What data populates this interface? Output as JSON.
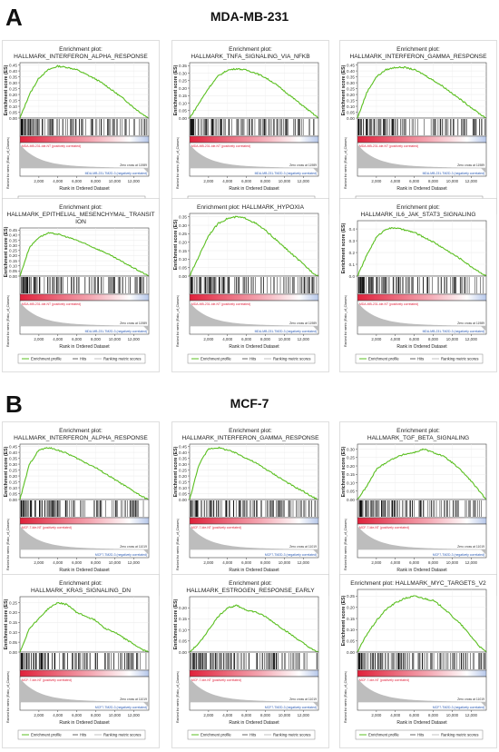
{
  "panels": [
    {
      "letter": "A",
      "title": "MDA-MB-231"
    },
    {
      "letter": "B",
      "title": "MCF-7"
    }
  ],
  "common": {
    "xlabel": "Rank in Ordered Dataset",
    "ylabel": "Enrichment score (ES)",
    "metric_label": "Ranked list metric (Ratio_of_Classes)",
    "legend": [
      "Enrichment profile",
      "Hits",
      "Ranking metric scores"
    ],
    "colors": {
      "es": "#5bbf21",
      "hits": "#000000",
      "metric": "#bdbdbd",
      "pos": "#e0203a",
      "neg": "#2a5ab5"
    }
  },
  "chart_data": [
    {
      "panel": "A",
      "type": "line",
      "title": "Enrichment plot:\nHALLMARK_INTERFERON_ALPHA_RESPONSE",
      "yticks": [
        0.0,
        0.05,
        0.1,
        0.15,
        0.2,
        0.25,
        0.3,
        0.35,
        0.4,
        0.45
      ],
      "ylim": [
        0,
        0.47
      ],
      "xticks": [
        2000,
        4000,
        6000,
        8000,
        10000,
        12000
      ],
      "xlim": [
        0,
        13600
      ],
      "x": [
        0,
        1000,
        2000,
        3000,
        4000,
        5000,
        6000,
        7000,
        8000,
        9000,
        10000,
        11000,
        12000,
        13000,
        13600
      ],
      "y": [
        0.0,
        0.2,
        0.34,
        0.41,
        0.44,
        0.43,
        0.41,
        0.37,
        0.33,
        0.28,
        0.22,
        0.16,
        0.09,
        0.03,
        0.0
      ],
      "pos_label": "MDA-MB-231-Ide-NT (positively correlated)",
      "neg_label": "MDA-MB-231-TM2D-3 (negatively correlated)",
      "zero_cross": "Zero cross at 11989"
    },
    {
      "panel": "A",
      "type": "line",
      "title": "Enrichment plot:\nHALLMARK_TNFA_SIGNALING_VIA_NFKB",
      "yticks": [
        0.0,
        0.05,
        0.1,
        0.15,
        0.2,
        0.25,
        0.3,
        0.35
      ],
      "ylim": [
        0,
        0.37
      ],
      "xticks": [
        2000,
        4000,
        6000,
        8000,
        10000,
        12000
      ],
      "xlim": [
        0,
        13600
      ],
      "x": [
        0,
        1000,
        2000,
        3000,
        4000,
        5000,
        6000,
        7000,
        8000,
        9000,
        10000,
        11000,
        12000,
        13000,
        13600
      ],
      "y": [
        0.0,
        0.1,
        0.2,
        0.28,
        0.32,
        0.33,
        0.32,
        0.3,
        0.27,
        0.23,
        0.18,
        0.13,
        0.08,
        0.03,
        0.0
      ],
      "pos_label": "MDA-MB-231-Ide-NT (positively correlated)",
      "neg_label": "MDA-MB-231-TM2D-3 (negatively correlated)",
      "zero_cross": "Zero cross at 11989"
    },
    {
      "panel": "A",
      "type": "line",
      "title": "Enrichment plot:\nHALLMARK_INTERFERON_GAMMA_RESPONSE",
      "yticks": [
        0.0,
        0.05,
        0.1,
        0.15,
        0.2,
        0.25,
        0.3,
        0.35,
        0.4,
        0.45
      ],
      "ylim": [
        0,
        0.47
      ],
      "xticks": [
        2000,
        4000,
        6000,
        8000,
        10000,
        12000
      ],
      "xlim": [
        0,
        13600
      ],
      "x": [
        0,
        1000,
        2000,
        3000,
        4000,
        5000,
        6000,
        7000,
        8000,
        9000,
        10000,
        11000,
        12000,
        13000,
        13600
      ],
      "y": [
        0.0,
        0.22,
        0.35,
        0.41,
        0.43,
        0.43,
        0.41,
        0.37,
        0.32,
        0.27,
        0.21,
        0.15,
        0.09,
        0.03,
        0.0
      ],
      "pos_label": "MDA-MB-231-Ide-NT (positively correlated)",
      "neg_label": "MDA-MB-231-TM2D-3 (negatively correlated)",
      "zero_cross": "Zero cross at 11989"
    },
    {
      "panel": "A",
      "type": "line",
      "title": "Enrichment plot:\nHALLMARK_EPITHELIAL_MESENCHYMAL_TRANSIT\nION",
      "yticks": [
        0.0,
        0.05,
        0.1,
        0.15,
        0.2,
        0.25,
        0.3,
        0.35,
        0.4,
        0.45
      ],
      "ylim": [
        0,
        0.47
      ],
      "xticks": [
        2000,
        4000,
        6000,
        8000,
        10000,
        12000
      ],
      "xlim": [
        0,
        13600
      ],
      "x": [
        0,
        1000,
        2000,
        3000,
        4000,
        5000,
        6000,
        7000,
        8000,
        9000,
        10000,
        11000,
        12000,
        13000,
        13600
      ],
      "y": [
        0.0,
        0.28,
        0.38,
        0.42,
        0.41,
        0.38,
        0.35,
        0.31,
        0.27,
        0.23,
        0.18,
        0.13,
        0.08,
        0.03,
        0.0
      ],
      "pos_label": "MDA-MB-231-Ide-NT (positively correlated)",
      "neg_label": "MDA-MB-231-TM2D-3 (negatively correlated)",
      "zero_cross": "Zero cross at 11989"
    },
    {
      "panel": "A",
      "type": "line",
      "title": "Enrichment plot: HALLMARK_HYPOXIA",
      "yticks": [
        0.0,
        0.05,
        0.1,
        0.15,
        0.2,
        0.25,
        0.3,
        0.35
      ],
      "ylim": [
        0,
        0.37
      ],
      "xticks": [
        2000,
        4000,
        6000,
        8000,
        10000,
        12000
      ],
      "xlim": [
        0,
        13600
      ],
      "x": [
        0,
        1000,
        2000,
        3000,
        4000,
        5000,
        6000,
        7000,
        8000,
        9000,
        10000,
        11000,
        12000,
        13000,
        13600
      ],
      "y": [
        0.0,
        0.12,
        0.24,
        0.31,
        0.34,
        0.35,
        0.34,
        0.31,
        0.27,
        0.22,
        0.17,
        0.12,
        0.07,
        0.02,
        0.0
      ],
      "pos_label": "MDA-MB-231-Ide-NT (positively correlated)",
      "neg_label": "MDA-MB-231-TM2D-3 (negatively correlated)",
      "zero_cross": "Zero cross at 11989"
    },
    {
      "panel": "A",
      "type": "line",
      "title": "Enrichment plot:\nHALLMARK_IL6_JAK_STAT3_SIGNALING",
      "yticks": [
        0.0,
        0.1,
        0.2,
        0.3,
        0.4
      ],
      "ylim": [
        0,
        0.47
      ],
      "xticks": [
        2000,
        4000,
        6000,
        8000,
        10000,
        12000
      ],
      "xlim": [
        0,
        13600
      ],
      "x": [
        0,
        1000,
        2000,
        3000,
        4000,
        5000,
        6000,
        7000,
        8000,
        9000,
        10000,
        11000,
        12000,
        13000,
        13600
      ],
      "y": [
        0.0,
        0.18,
        0.33,
        0.4,
        0.41,
        0.39,
        0.37,
        0.33,
        0.29,
        0.24,
        0.19,
        0.14,
        0.08,
        0.03,
        0.0
      ],
      "pos_label": "MDA-MB-231-Ide-NT (positively correlated)",
      "neg_label": "MDA-MB-231-TM2D-3 (negatively correlated)",
      "zero_cross": "Zero cross at 11989"
    },
    {
      "panel": "B",
      "type": "line",
      "title": "Enrichment plot:\nHALLMARK_INTERFERON_ALPHA_RESPONSE",
      "yticks": [
        0.0,
        0.05,
        0.1,
        0.15,
        0.2,
        0.25,
        0.3,
        0.35,
        0.4,
        0.45
      ],
      "ylim": [
        0,
        0.47
      ],
      "xticks": [
        2000,
        4000,
        6000,
        8000,
        10000,
        12000
      ],
      "xlim": [
        0,
        13600
      ],
      "x": [
        0,
        1000,
        2000,
        3000,
        4000,
        5000,
        6000,
        7000,
        8000,
        9000,
        10000,
        11000,
        12000,
        13000,
        13600
      ],
      "y": [
        0.0,
        0.3,
        0.42,
        0.44,
        0.42,
        0.39,
        0.35,
        0.31,
        0.27,
        0.22,
        0.17,
        0.12,
        0.07,
        0.02,
        0.0
      ],
      "pos_label": "MCF-7-Ide-NT (positively correlated)",
      "neg_label": "MCF7-TM2D-3 (negatively correlated)",
      "zero_cross": "Zero cross at 11019"
    },
    {
      "panel": "B",
      "type": "line",
      "title": "Enrichment plot:\nHALLMARK_INTERFERON_GAMMA_RESPONSE",
      "yticks": [
        0.0,
        0.05,
        0.1,
        0.15,
        0.2,
        0.25,
        0.3,
        0.35,
        0.4,
        0.45
      ],
      "ylim": [
        0,
        0.47
      ],
      "xticks": [
        2000,
        4000,
        6000,
        8000,
        10000,
        12000
      ],
      "xlim": [
        0,
        13600
      ],
      "x": [
        0,
        1000,
        2000,
        3000,
        4000,
        5000,
        6000,
        7000,
        8000,
        9000,
        10000,
        11000,
        12000,
        13000,
        13600
      ],
      "y": [
        0.0,
        0.3,
        0.43,
        0.44,
        0.42,
        0.39,
        0.35,
        0.31,
        0.26,
        0.21,
        0.16,
        0.11,
        0.07,
        0.02,
        0.0
      ],
      "pos_label": "MCF-7-Ide-NT (positively correlated)",
      "neg_label": "MCF7-TM2D-3 (negatively correlated)",
      "zero_cross": "Zero cross at 11019"
    },
    {
      "panel": "B",
      "type": "line",
      "title": "Enrichment plot:\nHALLMARK_TGF_BETA_SIGNALING",
      "yticks": [
        0.0,
        0.05,
        0.1,
        0.15,
        0.2,
        0.25,
        0.3
      ],
      "ylim": [
        0,
        0.33
      ],
      "xticks": [
        2000,
        4000,
        6000,
        8000,
        10000,
        12000
      ],
      "xlim": [
        0,
        13600
      ],
      "x": [
        0,
        1000,
        2000,
        3000,
        4000,
        5000,
        6000,
        7000,
        8000,
        9000,
        10000,
        11000,
        12000,
        13000,
        13600
      ],
      "y": [
        0.0,
        0.08,
        0.18,
        0.22,
        0.25,
        0.27,
        0.28,
        0.3,
        0.28,
        0.26,
        0.22,
        0.17,
        0.11,
        0.04,
        0.0
      ],
      "pos_label": "MCF-7-Ide-NT (positively correlated)",
      "neg_label": "MCF7-TM2D-3 (negatively correlated)",
      "zero_cross": "Zero cross at 11019"
    },
    {
      "panel": "B",
      "type": "line",
      "title": "Enrichment plot:\nHALLMARK_KRAS_SIGNALING_DN",
      "yticks": [
        0.0,
        0.05,
        0.1,
        0.15,
        0.2,
        0.25
      ],
      "ylim": [
        0,
        0.28
      ],
      "xticks": [
        2000,
        4000,
        6000,
        8000,
        10000,
        12000
      ],
      "xlim": [
        0,
        13600
      ],
      "x": [
        0,
        1000,
        2000,
        3000,
        4000,
        5000,
        6000,
        7000,
        8000,
        9000,
        10000,
        11000,
        12000,
        13000,
        13600
      ],
      "y": [
        0.0,
        0.12,
        0.17,
        0.22,
        0.25,
        0.24,
        0.2,
        0.18,
        0.16,
        0.12,
        0.1,
        0.07,
        0.04,
        0.01,
        0.0
      ],
      "pos_label": "MCF-7-Ide-NT (positively correlated)",
      "neg_label": "MCF7-TM2D-3 (negatively correlated)",
      "zero_cross": "Zero cross at 11019"
    },
    {
      "panel": "B",
      "type": "line",
      "title": "Enrichment plot:\nHALLMARK_ESTROGEN_RESPONSE_EARLY",
      "yticks": [
        0.0,
        0.05,
        0.1,
        0.15,
        0.2
      ],
      "ylim": [
        0,
        0.25
      ],
      "xticks": [
        2000,
        4000,
        6000,
        8000,
        10000,
        12000
      ],
      "xlim": [
        0,
        13600
      ],
      "x": [
        0,
        1000,
        2000,
        3000,
        4000,
        5000,
        6000,
        7000,
        8000,
        9000,
        10000,
        11000,
        12000,
        13000,
        13600
      ],
      "y": [
        0.0,
        0.04,
        0.1,
        0.16,
        0.2,
        0.21,
        0.19,
        0.18,
        0.16,
        0.13,
        0.1,
        0.07,
        0.04,
        0.01,
        0.0
      ],
      "pos_label": "MCF-7-Ide-NT (positively correlated)",
      "neg_label": "MCF7-TM2D-3 (negatively correlated)",
      "zero_cross": "Zero cross at 11019"
    },
    {
      "panel": "B",
      "type": "line",
      "title": "Enrichment plot: HALLMARK_MYC_TARGETS_V2",
      "yticks": [
        0.0,
        0.05,
        0.1,
        0.15,
        0.2,
        0.25
      ],
      "ylim": [
        0,
        0.28
      ],
      "xticks": [
        2000,
        4000,
        6000,
        8000,
        10000,
        12000
      ],
      "xlim": [
        0,
        13600
      ],
      "x": [
        0,
        1000,
        2000,
        3000,
        4000,
        5000,
        6000,
        7000,
        8000,
        9000,
        10000,
        11000,
        12000,
        13000,
        13600
      ],
      "y": [
        0.0,
        0.08,
        0.14,
        0.19,
        0.22,
        0.24,
        0.25,
        0.24,
        0.23,
        0.2,
        0.16,
        0.12,
        0.07,
        0.02,
        0.0
      ],
      "pos_label": "MCF-7-Ide-NT (positively correlated)",
      "neg_label": "MCF7-TM2D-3 (negatively correlated)",
      "zero_cross": "Zero cross at 11019"
    }
  ]
}
